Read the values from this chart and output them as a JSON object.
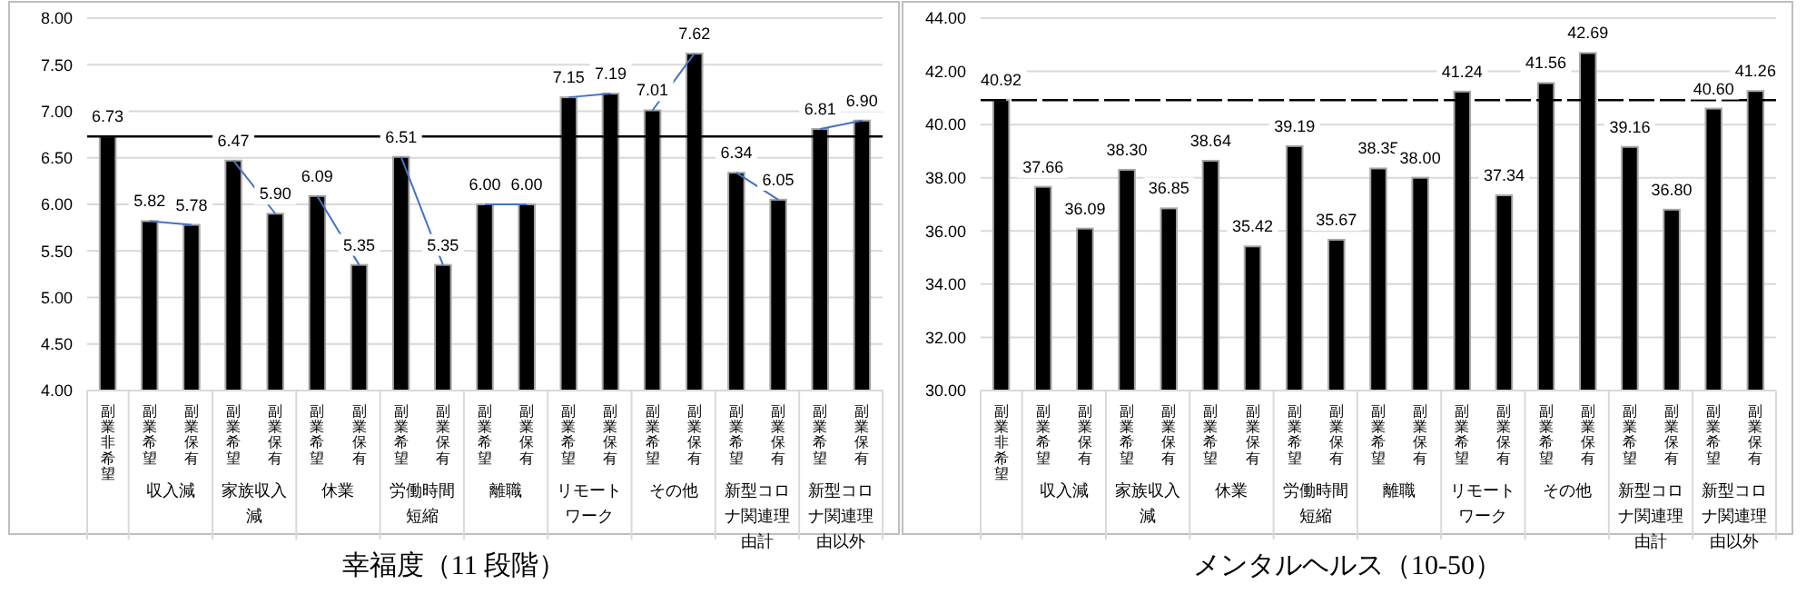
{
  "chart_data": [
    {
      "type": "bar",
      "title": "幸福度（11 段階）",
      "categories": [
        "副業非希望",
        "副業希望",
        "副業保有",
        "副業希望",
        "副業保有",
        "副業希望",
        "副業保有",
        "副業希望",
        "副業保有",
        "副業希望",
        "副業保有",
        "副業希望",
        "副業保有",
        "副業希望",
        "副業保有",
        "副業希望",
        "副業保有",
        "副業希望",
        "副業保有"
      ],
      "series": [
        {
          "color": "#000000",
          "values": [
            6.73,
            5.82,
            5.78,
            6.47,
            5.9,
            6.09,
            5.35,
            6.51,
            5.35,
            6.0,
            6.0,
            7.15,
            7.19,
            7.01,
            7.62,
            6.34,
            6.05,
            6.81,
            6.9
          ],
          "value_labels": [
            "6.73",
            "5.82",
            "5.78",
            "6.47",
            "5.90",
            "6.09",
            "5.35",
            "6.51",
            "5.35",
            "6.00",
            "6.00",
            "7.15",
            "7.19",
            "7.01",
            "7.62",
            "6.34",
            "6.05",
            "6.81",
            "6.90"
          ]
        },
        {
          "type": "line",
          "color": "#4472c4",
          "values": [
            null,
            5.82,
            5.78,
            null,
            null,
            null,
            null,
            null,
            null,
            null,
            null,
            null,
            null,
            null,
            null,
            null,
            null,
            null,
            null
          ]
        },
        {
          "type": "line",
          "color": "#4472c4",
          "values": [
            null,
            null,
            null,
            6.47,
            5.9,
            null,
            null,
            null,
            null,
            null,
            null,
            null,
            null,
            null,
            null,
            null,
            null,
            null,
            null
          ]
        },
        {
          "type": "line",
          "color": "#4472c4",
          "values": [
            null,
            null,
            null,
            null,
            null,
            6.09,
            5.35,
            null,
            null,
            null,
            null,
            null,
            null,
            null,
            null,
            null,
            null,
            null,
            null
          ]
        },
        {
          "type": "line",
          "color": "#4472c4",
          "values": [
            null,
            null,
            null,
            null,
            null,
            null,
            null,
            6.51,
            5.35,
            null,
            null,
            null,
            null,
            null,
            null,
            null,
            null,
            null,
            null
          ]
        },
        {
          "type": "line",
          "color": "#4472c4",
          "values": [
            null,
            null,
            null,
            null,
            null,
            null,
            null,
            null,
            null,
            6.0,
            6.0,
            null,
            null,
            null,
            null,
            null,
            null,
            null,
            null
          ]
        },
        {
          "type": "line",
          "color": "#4472c4",
          "values": [
            null,
            null,
            null,
            null,
            null,
            null,
            null,
            null,
            null,
            null,
            null,
            7.15,
            7.19,
            null,
            null,
            null,
            null,
            null,
            null
          ]
        },
        {
          "type": "line",
          "color": "#4472c4",
          "values": [
            null,
            null,
            null,
            null,
            null,
            null,
            null,
            null,
            null,
            null,
            null,
            null,
            null,
            7.01,
            7.62,
            null,
            null,
            null,
            null
          ]
        },
        {
          "type": "line",
          "color": "#4472c4",
          "values": [
            null,
            null,
            null,
            null,
            null,
            null,
            null,
            null,
            null,
            null,
            null,
            null,
            null,
            null,
            null,
            6.34,
            6.05,
            null,
            null
          ]
        },
        {
          "type": "line",
          "color": "#4472c4",
          "values": [
            null,
            null,
            null,
            null,
            null,
            null,
            null,
            null,
            null,
            null,
            null,
            null,
            null,
            null,
            null,
            null,
            null,
            6.81,
            6.9
          ]
        }
      ],
      "annotations": [
        "収入減",
        "家族収入減",
        "休業",
        "労働時間短縮",
        "離職",
        "リモートワーク",
        "その他",
        "新型コロナ関連理由計",
        "新型コロナ関連理由以外"
      ],
      "ylim": [
        4,
        8
      ],
      "yticks": [
        {
          "value": 4,
          "label": "4.00"
        },
        {
          "value": 4.5,
          "label": "4.50"
        },
        {
          "value": 5,
          "label": "5.00"
        },
        {
          "value": 5.5,
          "label": "5.50"
        },
        {
          "value": 6,
          "label": "6.00"
        },
        {
          "value": 6.5,
          "label": "6.50"
        },
        {
          "value": 7,
          "label": "7.00"
        },
        {
          "value": 7.5,
          "label": "7.50"
        },
        {
          "value": 8,
          "label": "8.00"
        }
      ],
      "ref_lines": [
        {
          "axis": "y",
          "value": 6.73,
          "color": "#000000",
          "line_style": "solid"
        }
      ],
      "grid": "y"
    },
    {
      "type": "bar",
      "title": "メンタルヘルス（10-50）",
      "categories": [
        "副業非希望",
        "副業希望",
        "副業保有",
        "副業希望",
        "副業保有",
        "副業希望",
        "副業保有",
        "副業希望",
        "副業保有",
        "副業希望",
        "副業保有",
        "副業希望",
        "副業保有",
        "副業希望",
        "副業保有",
        "副業希望",
        "副業保有",
        "副業希望",
        "副業保有"
      ],
      "series": [
        {
          "color": "#000000",
          "values": [
            40.92,
            37.66,
            36.09,
            38.3,
            36.85,
            38.64,
            35.42,
            39.19,
            35.67,
            38.35,
            38.0,
            41.24,
            37.34,
            41.56,
            42.69,
            39.16,
            36.8,
            40.6,
            41.26
          ],
          "value_labels": [
            "40.92",
            "37.66",
            "36.09",
            "38.30",
            "36.85",
            "38.64",
            "35.42",
            "39.19",
            "35.67",
            "38.35",
            "38.00",
            "41.24",
            "37.34",
            "41.56",
            "42.69",
            "39.16",
            "36.80",
            "40.60",
            "41.26"
          ]
        }
      ],
      "annotations": [
        "収入減",
        "家族収入減",
        "休業",
        "労働時間短縮",
        "離職",
        "リモートワーク",
        "その他",
        "新型コロナ関連理由計",
        "新型コロナ関連理由以外"
      ],
      "ylim": [
        30,
        44
      ],
      "yticks": [
        {
          "value": 30,
          "label": "30.00"
        },
        {
          "value": 32,
          "label": "32.00"
        },
        {
          "value": 34,
          "label": "34.00"
        },
        {
          "value": 36,
          "label": "36.00"
        },
        {
          "value": 38,
          "label": "38.00"
        },
        {
          "value": 40,
          "label": "40.00"
        },
        {
          "value": 42,
          "label": "42.00"
        },
        {
          "value": 44,
          "label": "44.00"
        }
      ],
      "ref_lines": [
        {
          "axis": "y",
          "value": 40.92,
          "color": "#000000",
          "line_style": "dashed"
        }
      ],
      "grid": "y"
    }
  ]
}
